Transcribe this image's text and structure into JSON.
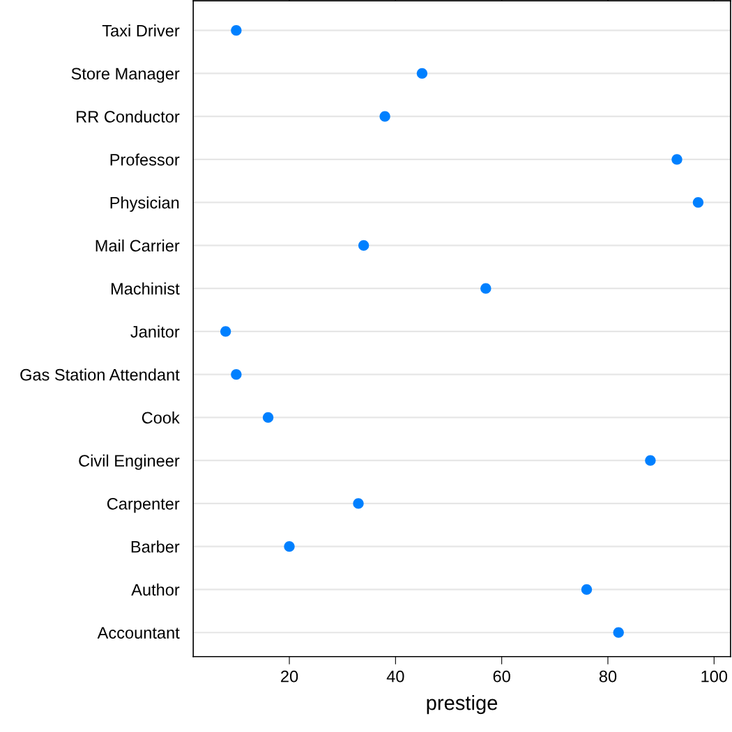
{
  "chart_data": {
    "type": "scatter",
    "orientation": "horizontal",
    "xlabel": "prestige",
    "categories": [
      "Taxi Driver",
      "Store Manager",
      "RR Conductor",
      "Professor",
      "Physician",
      "Mail Carrier",
      "Machinist",
      "Janitor",
      "Gas Station Attendant",
      "Cook",
      "Civil Engineer",
      "Carpenter",
      "Barber",
      "Author",
      "Accountant"
    ],
    "values": [
      10,
      45,
      38,
      93,
      97,
      34,
      57,
      8,
      10,
      16,
      88,
      33,
      20,
      76,
      82
    ],
    "color": "#0080ff",
    "marker": "circle",
    "xlim": [
      1.9,
      103.1
    ],
    "xticks": [
      20,
      40,
      60,
      80,
      100
    ],
    "grid": "y"
  }
}
